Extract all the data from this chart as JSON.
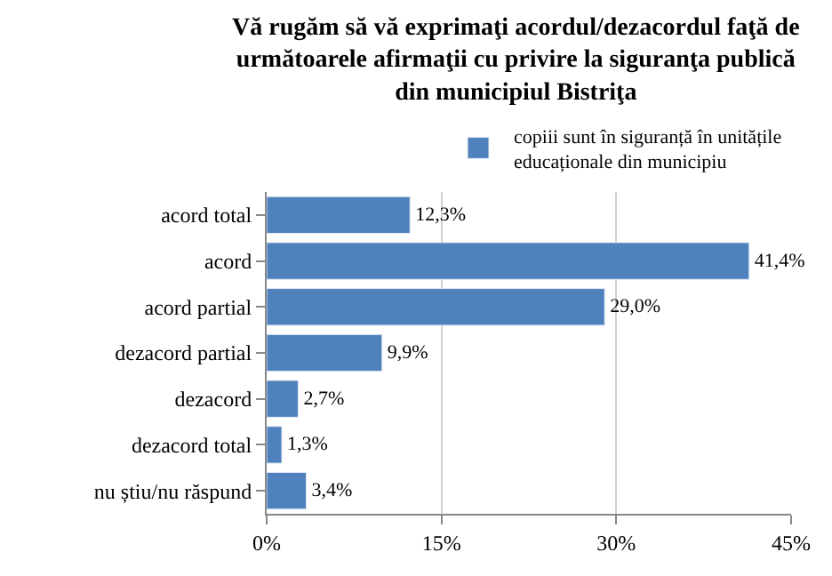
{
  "chart_data": {
    "type": "bar",
    "orientation": "horizontal",
    "title": "Vă rugăm să vă exprimaţi acordul/dezacordul faţă de\nurmătoarele afirmaţii cu privire la siguranţa publică\ndin municipiul Bistriţa",
    "categories": [
      "acord total",
      "acord",
      "acord partial",
      "dezacord partial",
      "dezacord",
      "dezacord total",
      "nu știu/nu răspund"
    ],
    "series": [
      {
        "name": "copiii sunt în siguranță în unitățile\neducaționale din municipiu",
        "color": "#4f81bd",
        "values": [
          12.3,
          41.4,
          29.0,
          9.9,
          2.7,
          1.3,
          3.4
        ],
        "value_labels": [
          "12,3%",
          "41,4%",
          "29,0%",
          "9,9%",
          "2,7%",
          "1,3%",
          "3,4%"
        ]
      }
    ],
    "xlim": [
      0,
      45
    ],
    "xticks": [
      {
        "value": 0,
        "label": "0%"
      },
      {
        "value": 15,
        "label": "15%"
      },
      {
        "value": 30,
        "label": "30%"
      },
      {
        "value": 45,
        "label": "45%"
      }
    ],
    "grid": "x",
    "legend": "top right"
  }
}
